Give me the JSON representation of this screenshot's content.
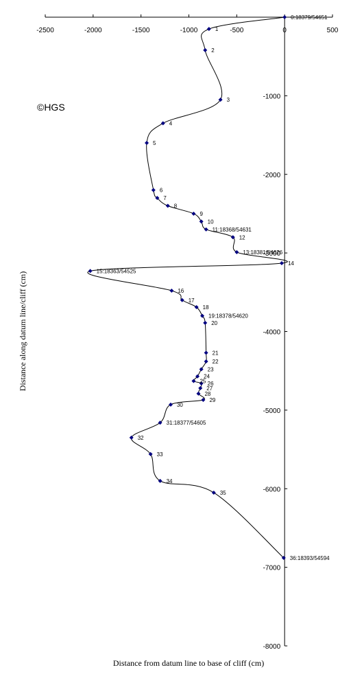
{
  "chart_data": {
    "type": "scatter",
    "xlabel": "Distance from datum line to base of cliff (cm)",
    "ylabel": "Distance along datum line/cliff (cm)",
    "xlim": [
      -2500,
      500
    ],
    "ylim": [
      -8000,
      0
    ],
    "x_ticks": [
      -2500,
      -2000,
      -1500,
      -1000,
      -500,
      0,
      500
    ],
    "y_ticks": [
      -1000,
      -2000,
      -3000,
      -4000,
      -5000,
      -6000,
      -7000,
      -8000
    ],
    "x_tick_labels": [
      "-2500",
      "-2000",
      "-1500",
      "-1000",
      "-500",
      "0",
      "500"
    ],
    "y_tick_labels": [
      "-1000",
      "-2000",
      "-3000",
      "-4000",
      "-5000",
      "-6000",
      "-7000",
      "-8000"
    ],
    "marker_color": "#000080",
    "line_color": "#000000",
    "grid": false,
    "smoothed_line": true,
    "points": [
      {
        "x": 0,
        "y": 0,
        "label": "0:18379/54651"
      },
      {
        "x": -790,
        "y": -150,
        "label": "1"
      },
      {
        "x": -830,
        "y": -420,
        "label": "2"
      },
      {
        "x": -670,
        "y": -1050,
        "label": "3"
      },
      {
        "x": -1270,
        "y": -1350,
        "label": "4"
      },
      {
        "x": -1440,
        "y": -1600,
        "label": "5"
      },
      {
        "x": -1370,
        "y": -2200,
        "label": "6"
      },
      {
        "x": -1330,
        "y": -2300,
        "label": "7"
      },
      {
        "x": -1220,
        "y": -2400,
        "label": "8"
      },
      {
        "x": -950,
        "y": -2500,
        "label": "9"
      },
      {
        "x": -870,
        "y": -2600,
        "label": "10"
      },
      {
        "x": -820,
        "y": -2700,
        "label": "11:18368/54631"
      },
      {
        "x": -540,
        "y": -2800,
        "label": "12"
      },
      {
        "x": -500,
        "y": -2990,
        "label": "13:18381/54626"
      },
      {
        "x": -30,
        "y": -3130,
        "label": "14"
      },
      {
        "x": -2030,
        "y": -3230,
        "label": "15:18363/54525"
      },
      {
        "x": -1180,
        "y": -3480,
        "label": "16"
      },
      {
        "x": -1070,
        "y": -3600,
        "label": "17"
      },
      {
        "x": -920,
        "y": -3690,
        "label": "18"
      },
      {
        "x": -860,
        "y": -3800,
        "label": "19:18378/54620"
      },
      {
        "x": -830,
        "y": -3890,
        "label": "20"
      },
      {
        "x": -820,
        "y": -4270,
        "label": "21"
      },
      {
        "x": -820,
        "y": -4380,
        "label": "22"
      },
      {
        "x": -870,
        "y": -4480,
        "label": "23"
      },
      {
        "x": -910,
        "y": -4570,
        "label": "24"
      },
      {
        "x": -950,
        "y": -4630,
        "label": "25"
      },
      {
        "x": -870,
        "y": -4660,
        "label": "26"
      },
      {
        "x": -880,
        "y": -4720,
        "label": "27"
      },
      {
        "x": -900,
        "y": -4790,
        "label": "28"
      },
      {
        "x": -850,
        "y": -4870,
        "label": "29"
      },
      {
        "x": -1190,
        "y": -4930,
        "label": "30"
      },
      {
        "x": -1300,
        "y": -5160,
        "label": "31:18377/54605"
      },
      {
        "x": -1600,
        "y": -5350,
        "label": "32"
      },
      {
        "x": -1400,
        "y": -5560,
        "label": "33"
      },
      {
        "x": -1300,
        "y": -5900,
        "label": "34"
      },
      {
        "x": -740,
        "y": -6050,
        "label": "35"
      },
      {
        "x": -10,
        "y": -6880,
        "label": "36:18393/54594"
      }
    ]
  },
  "watermark": "©HGS"
}
